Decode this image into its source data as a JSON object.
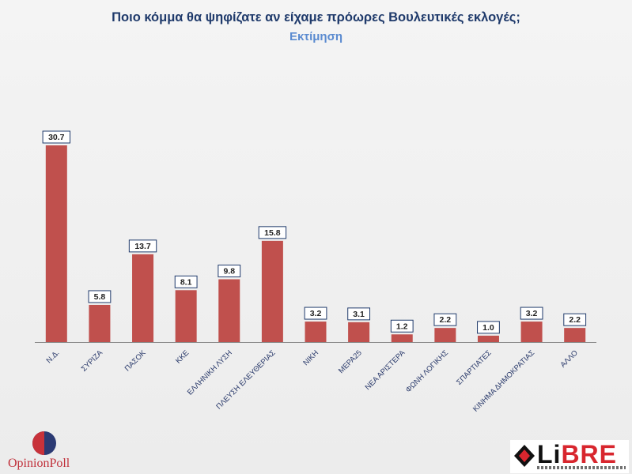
{
  "title": "Ποιο κόμμα θα ψηφίζατε αν είχαμε πρόωρες Βουλευτικές εκλογές;",
  "subtitle": "Εκτίμηση",
  "chart_data": {
    "type": "bar",
    "title": "Ποιο κόμμα θα ψηφίζατε αν είχαμε πρόωρες Βουλευτικές εκλογές;",
    "subtitle": "Εκτίμηση",
    "categories": [
      "Ν.Δ.",
      "ΣΥΡΙΖΑ",
      "ΠΑΣΟΚ",
      "ΚΚΕ",
      "ΕΛΛΗΝΙΚΗ ΛΥΣΗ",
      "ΠΛΕΥΣΗ ΕΛΕΥΘΕΡΙΑΣ",
      "ΝΙΚΗ",
      "ΜΕΡΑ25",
      "ΝΕΑ ΑΡΙΣΤΕΡΑ",
      "ΦΩΝΗ ΛΟΓΙΚΗΣ",
      "ΣΠΑΡΤΙΑΤΕΣ",
      "ΚΙΝΗΜΑ ΔΗΜΟΚΡΑΤΙΑΣ",
      "ΑΛΛΟ"
    ],
    "values": [
      30.7,
      5.8,
      13.7,
      8.1,
      9.8,
      15.8,
      3.2,
      3.1,
      1.2,
      2.2,
      1.0,
      3.2,
      2.2
    ],
    "value_labels": [
      "30.7",
      "5.8",
      "13.7",
      "8.1",
      "9.8",
      "15.8",
      "3.2",
      "3.1",
      "1.2",
      "2.2",
      "1.0",
      "3.2",
      "2.2"
    ],
    "xlabel": "",
    "ylabel": "",
    "ylim": [
      0,
      30.7
    ],
    "grid": false,
    "bar_color": "#c0504d",
    "label_border_color": "#1f3a6b"
  },
  "logos": {
    "opinion_poll": "OpinionPoll",
    "libre_part1": "Li",
    "libre_part2": "BRE"
  },
  "colors": {
    "title": "#1f3a6b",
    "subtitle": "#5b8bd0",
    "op_red": "#c8323a",
    "op_blue": "#2b3a73",
    "libre_red": "#d8262e"
  }
}
